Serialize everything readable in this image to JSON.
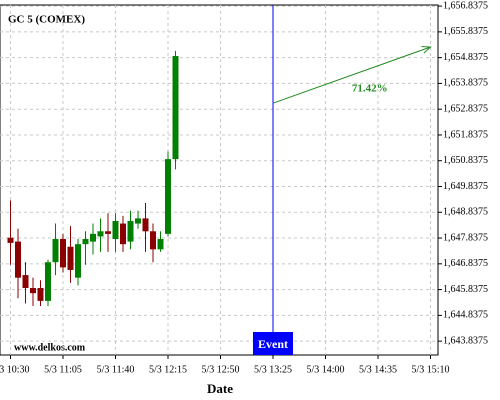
{
  "chart_data": {
    "type": "candlestick",
    "title": "GC 5 (COMEX)",
    "watermark": "www.delkos.com",
    "x_label": "Date",
    "x": [
      "5/3 10:30",
      "5/3 10:35",
      "5/3 10:40",
      "5/3 10:45",
      "5/3 10:50",
      "5/3 10:55",
      "5/3 11:00",
      "5/3 11:05",
      "5/3 11:10",
      "5/3 11:15",
      "5/3 11:20",
      "5/3 11:25",
      "5/3 11:30",
      "5/3 11:35",
      "5/3 11:40",
      "5/3 11:45",
      "5/3 11:50",
      "5/3 11:55",
      "5/3 12:00",
      "5/3 12:05",
      "5/3 12:10",
      "5/3 12:15",
      "5/3 12:20"
    ],
    "open": [
      1647.85,
      1647.7,
      1646.4,
      1645.9,
      1645.9,
      1645.4,
      1646.9,
      1647.8,
      1647.5,
      1646.3,
      1647.6,
      1647.7,
      1647.9,
      1648.1,
      1647.8,
      1648.4,
      1647.7,
      1648.4,
      1648.6,
      1648.1,
      1647.4,
      1648.0,
      1650.9
    ],
    "high": [
      1649.3,
      1648.2,
      1646.9,
      1646.3,
      1646.2,
      1647.0,
      1648.4,
      1648.0,
      1648.3,
      1647.8,
      1648.1,
      1648.4,
      1648.6,
      1648.8,
      1648.8,
      1648.7,
      1648.9,
      1648.9,
      1649.2,
      1648.4,
      1648.1,
      1651.2,
      1655.1
    ],
    "low": [
      1646.8,
      1645.5,
      1645.3,
      1645.2,
      1645.2,
      1645.2,
      1646.4,
      1646.5,
      1646.1,
      1646.0,
      1646.8,
      1647.2,
      1647.3,
      1647.3,
      1647.3,
      1647.3,
      1647.4,
      1648.2,
      1647.3,
      1646.9,
      1647.3,
      1647.9,
      1650.5
    ],
    "close": [
      1647.65,
      1646.3,
      1645.9,
      1645.7,
      1645.4,
      1646.9,
      1647.8,
      1646.7,
      1646.6,
      1647.6,
      1647.8,
      1648.0,
      1648.1,
      1648.0,
      1648.5,
      1647.6,
      1648.5,
      1648.6,
      1648.1,
      1647.4,
      1647.8,
      1650.9,
      1654.9
    ],
    "up_color": "#008000",
    "down_color": "#8b0000",
    "xlim": [
      "5/3 10:23",
      "5/3 15:15"
    ],
    "xticks": [
      "5/3 10:30",
      "5/3 11:05",
      "5/3 11:40",
      "5/3 12:15",
      "5/3 12:50",
      "5/3 13:25",
      "5/3 14:00",
      "5/3 14:35",
      "5/3 15:10"
    ],
    "ylim": [
      1643.3,
      1656.88
    ],
    "yticks": [
      {
        "value": 1643.8375,
        "label": "1,643.8375"
      },
      {
        "value": 1644.8375,
        "label": "1,644.8375"
      },
      {
        "value": 1645.8375,
        "label": "1,645.8375"
      },
      {
        "value": 1646.8375,
        "label": "1,646.8375"
      },
      {
        "value": 1647.8375,
        "label": "1,647.8375"
      },
      {
        "value": 1648.8375,
        "label": "1,648.8375"
      },
      {
        "value": 1649.8375,
        "label": "1,649.8375"
      },
      {
        "value": 1650.8375,
        "label": "1,650.8375"
      },
      {
        "value": 1651.8375,
        "label": "1,651.8375"
      },
      {
        "value": 1652.8375,
        "label": "1,652.8375"
      },
      {
        "value": 1653.8375,
        "label": "1,653.8375"
      },
      {
        "value": 1654.8375,
        "label": "1,654.8375"
      },
      {
        "value": 1655.8375,
        "label": "1,655.8375"
      },
      {
        "value": 1656.8375,
        "label": "1,656.8375"
      }
    ],
    "grid": true,
    "event": {
      "x": "5/3 13:25",
      "label": "Event",
      "color": "#0000ff"
    },
    "projection": {
      "x0": "5/3 13:25",
      "y0": 1653.07,
      "x1": "5/3 15:10",
      "y1": 1655.25,
      "label": "71.42%",
      "color": "#228b22"
    }
  }
}
